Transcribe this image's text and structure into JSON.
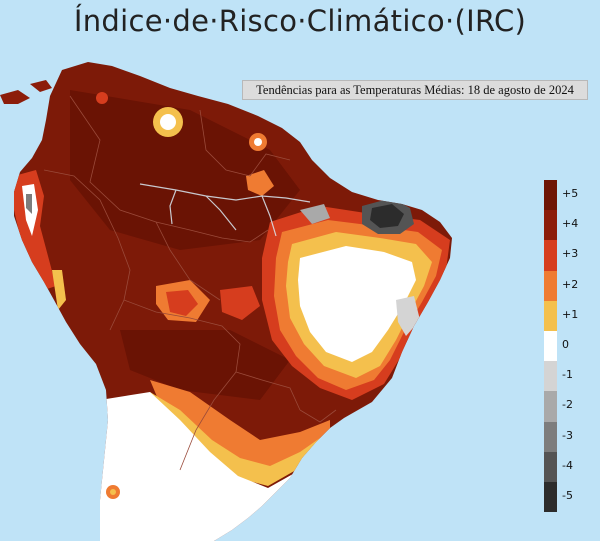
{
  "title": "Índice·de·Risco·Climático·(IRC)",
  "subtitle": "Tendências para as Temperaturas Médias: 18 de agosto de 2024",
  "legend": [
    {
      "label": "+5",
      "color": "#6e1505"
    },
    {
      "label": "+4",
      "color": "#8c1d0a"
    },
    {
      "label": "+3",
      "color": "#d63d1e"
    },
    {
      "label": "+2",
      "color": "#ef7b32"
    },
    {
      "label": "+1",
      "color": "#f4c04d"
    },
    {
      "label": "0",
      "color": "#ffffff"
    },
    {
      "label": "-1",
      "color": "#d4d4d4"
    },
    {
      "label": "-2",
      "color": "#a9a9a9"
    },
    {
      "label": "-3",
      "color": "#7d7d7d"
    },
    {
      "label": "-4",
      "color": "#545454"
    },
    {
      "label": "-5",
      "color": "#2c2c2c"
    }
  ],
  "colors": {
    "ocean": "#bfe3f7",
    "borders": "#9a4a3a"
  }
}
